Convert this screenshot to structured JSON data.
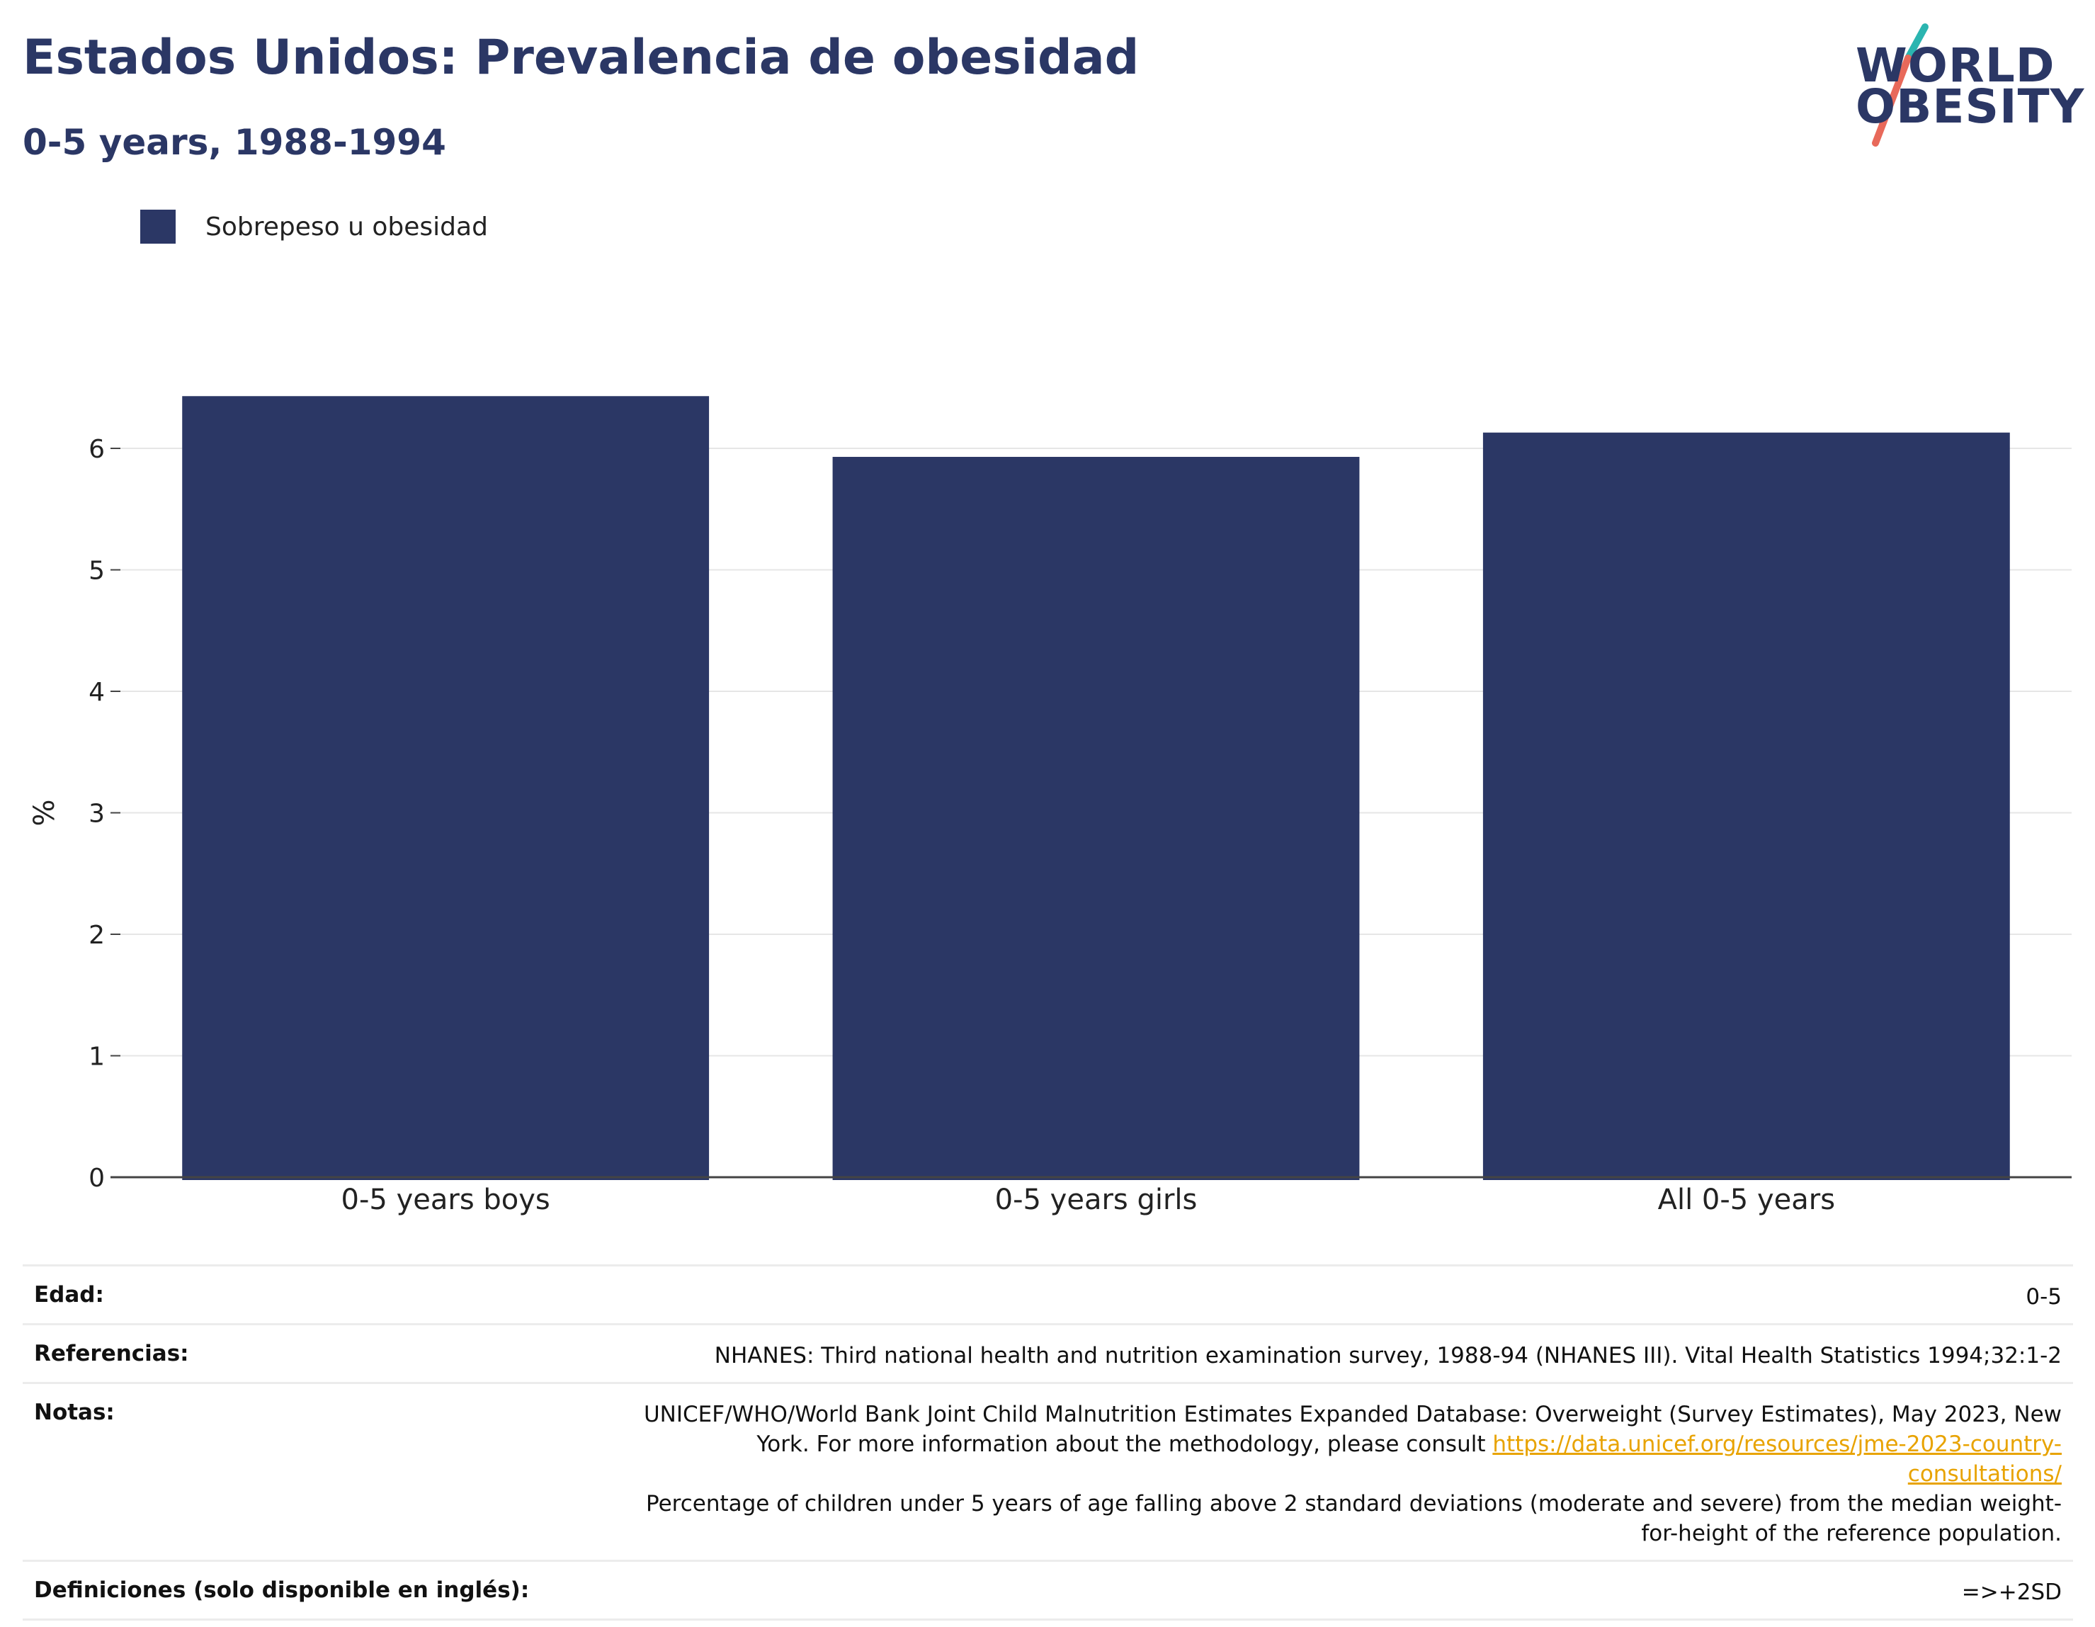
{
  "header": {
    "title": "Estados Unidos: Prevalencia de obesidad",
    "subtitle": "0-5 years, 1988-1994"
  },
  "logo": {
    "line1": "WORLD",
    "line2": "OBESITY",
    "colors": {
      "text": "#2b3765",
      "teal": "#2bb5b0",
      "coral": "#e8695a"
    }
  },
  "colors": {
    "bar": "#2b3765",
    "grid": "#e6e6e6",
    "axis": "#444444"
  },
  "chart_data": {
    "type": "bar",
    "categories": [
      "0-5 years boys",
      "0-5 years girls",
      "All 0-5 years"
    ],
    "series": [
      {
        "name": "Sobrepeso u obesidad",
        "values": [
          6.43,
          5.93,
          6.13
        ]
      }
    ],
    "ylabel": "%",
    "yticks": [
      0,
      1,
      2,
      3,
      4,
      5,
      6
    ],
    "ylim": [
      0,
      6.5
    ],
    "grid": true,
    "legend_position": "top-left"
  },
  "info": {
    "rows": [
      {
        "key": "Edad:",
        "value": "0-5"
      },
      {
        "key": "Referencias:",
        "value": "NHANES: Third national health and nutrition examination survey, 1988-94 (NHANES III). Vital Health Statistics 1994;32:1-2"
      },
      {
        "key": "Notas:",
        "value_before": "UNICEF/WHO/World Bank Joint Child Malnutrition Estimates Expanded Database: Overweight (Survey Estimates), May 2023, New York. For more information about the methodology, please consult ",
        "link": "https://data.unicef.org/resources/jme-2023-country-consultations/",
        "value_after": "Percentage of children under 5 years of age falling above 2 standard deviations (moderate and severe) from the median weight-for-height of the reference population."
      },
      {
        "key": "Definiciones (solo disponible en inglés):",
        "value": "=>+2SD"
      }
    ]
  }
}
